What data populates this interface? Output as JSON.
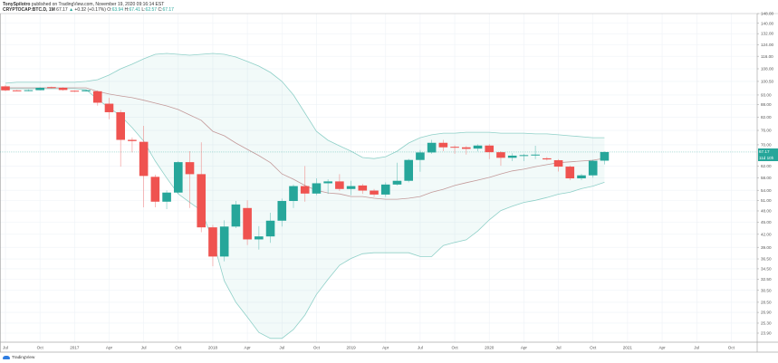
{
  "header": {
    "author": "TonySpilotro",
    "published": "published on TradingView.com, November 19, 2020 09:16:14 EST",
    "symbol": "CRYPTOCAP:BTC.D, 1M",
    "last": "67.17",
    "change": "+0.32 (+0.17%)",
    "o_label": "O:",
    "o": "63.94",
    "h_label": "H:",
    "h": "67.41",
    "l_label": "L:",
    "l": "62.57",
    "c_label": "C:",
    "c": "67.17"
  },
  "price_label": "67.17",
  "countdown_label": "11d 10h",
  "logo_text": "TradingView",
  "colors": {
    "up": "#26a69a",
    "down": "#ef5350",
    "band": "#8fd0c8",
    "basis": "#c39a9a",
    "grid": "#eef2f7"
  },
  "chart_data": {
    "type": "candlestick",
    "title": "CRYPTOCAP:BTC.D, 1M",
    "scale": "log",
    "ylim": [
      22.5,
      150
    ],
    "first_month": "Jul 2016",
    "y_ticks": [
      "148.00",
      "140.00",
      "132.00",
      "124.00",
      "116.00",
      "108.00",
      "100.50",
      "93.00",
      "88.00",
      "82.00",
      "76.00",
      "70.00",
      "62.00",
      "58.00",
      "54.00",
      "51.00",
      "48.00",
      "45.00",
      "42.00",
      "39.00",
      "36.50",
      "34.50",
      "32.50",
      "30.50",
      "28.50",
      "26.90",
      "25.30",
      "23.90"
    ],
    "x_ticks": [
      {
        "m": 0,
        "label": "Jul"
      },
      {
        "m": 3,
        "label": "Oct"
      },
      {
        "m": 6,
        "label": "2017"
      },
      {
        "m": 9,
        "label": "Apr"
      },
      {
        "m": 12,
        "label": "Jul"
      },
      {
        "m": 15,
        "label": "Oct"
      },
      {
        "m": 18,
        "label": "2018"
      },
      {
        "m": 21,
        "label": "Apr"
      },
      {
        "m": 24,
        "label": "Jul"
      },
      {
        "m": 27,
        "label": "Oct"
      },
      {
        "m": 30,
        "label": "2019"
      },
      {
        "m": 33,
        "label": "Apr"
      },
      {
        "m": 36,
        "label": "Jul"
      },
      {
        "m": 39,
        "label": "Oct"
      },
      {
        "m": 42,
        "label": "2020"
      },
      {
        "m": 45,
        "label": "Apr"
      },
      {
        "m": 48,
        "label": "Jul"
      },
      {
        "m": 51,
        "label": "Oct"
      },
      {
        "m": 54,
        "label": "2021"
      },
      {
        "m": 57,
        "label": "Apr"
      },
      {
        "m": 60,
        "label": "Jul"
      },
      {
        "m": 63,
        "label": "Oct"
      }
    ],
    "ohlc": [
      [
        97.7,
        98.5,
        95,
        95.5
      ],
      [
        95.5,
        95.8,
        95,
        95.3
      ],
      [
        95.3,
        96,
        95,
        95.6
      ],
      [
        95.6,
        97.2,
        95.5,
        96.9
      ],
      [
        97.3,
        97.6,
        96.5,
        96.7
      ],
      [
        96.9,
        97.2,
        95.3,
        95.7
      ],
      [
        95.3,
        95.5,
        94.6,
        94.9
      ],
      [
        95,
        95.8,
        94.8,
        95.6
      ],
      [
        95,
        95.5,
        87.5,
        89
      ],
      [
        88.5,
        91.5,
        81,
        84.3
      ],
      [
        84.3,
        85.4,
        61.8,
        72
      ],
      [
        72,
        73,
        67,
        71.5
      ],
      [
        71.2,
        78,
        49,
        58.6
      ],
      [
        58.3,
        59,
        49,
        50.6
      ],
      [
        50.6,
        54,
        48.5,
        53.3
      ],
      [
        53.3,
        63.8,
        53,
        63.4
      ],
      [
        63.4,
        67.5,
        48.8,
        59.2
      ],
      [
        59.2,
        71,
        42.5,
        43.7
      ],
      [
        43.7,
        44.3,
        35,
        37
      ],
      [
        37,
        45.5,
        36,
        43.9
      ],
      [
        43.9,
        50.8,
        43.5,
        49.8
      ],
      [
        48.8,
        51,
        39.5,
        40.8
      ],
      [
        40.8,
        44,
        38.5,
        41.5
      ],
      [
        41.5,
        47.5,
        40,
        45.4
      ],
      [
        45.4,
        51.5,
        43.9,
        50.8
      ],
      [
        50.8,
        55.8,
        48.8,
        55.3
      ],
      [
        55.3,
        62,
        50.6,
        53
      ],
      [
        53,
        57.8,
        52.5,
        56.2
      ],
      [
        56.2,
        57.5,
        52.9,
        56.8
      ],
      [
        56.8,
        59.2,
        53.8,
        54.4
      ],
      [
        54.4,
        57,
        52.5,
        55.3
      ],
      [
        55.5,
        56,
        52.9,
        53.9
      ],
      [
        53.9,
        54.4,
        52,
        52.7
      ],
      [
        52.7,
        56.5,
        52,
        55.8
      ],
      [
        55.8,
        63.2,
        55.5,
        57
      ],
      [
        57,
        64.6,
        56.5,
        64.2
      ],
      [
        64.2,
        68,
        60,
        67
      ],
      [
        67,
        72,
        66.5,
        70.8
      ],
      [
        70.8,
        72,
        67.5,
        69
      ],
      [
        69.2,
        69.8,
        66.5,
        69
      ],
      [
        69,
        69.5,
        66.2,
        68.4
      ],
      [
        68.5,
        70.2,
        67.4,
        69.7
      ],
      [
        69.7,
        70.3,
        64.5,
        67.1
      ],
      [
        67.1,
        67.5,
        62.1,
        65
      ],
      [
        65,
        66.7,
        63.8,
        65.8
      ],
      [
        65.8,
        66.5,
        63.8,
        66
      ],
      [
        66,
        69.6,
        64.5,
        66.2
      ],
      [
        64.8,
        65.3,
        64,
        64.4
      ],
      [
        64.1,
        64.5,
        60.1,
        61.8
      ],
      [
        61.8,
        62.2,
        57.2,
        57.8
      ],
      [
        57.8,
        59.3,
        57.2,
        58.8
      ],
      [
        58.8,
        64.3,
        58,
        63.9
      ],
      [
        63.94,
        67.41,
        62.57,
        67.17
      ]
    ],
    "bollinger": {
      "upper": [
        99.5,
        100,
        100,
        100,
        100,
        100,
        100,
        100.5,
        101.5,
        104.2,
        108,
        110.9,
        114.3,
        117.3,
        117.9,
        117.3,
        116.7,
        117.3,
        117.9,
        117.3,
        115.5,
        112.6,
        109.7,
        105.8,
        100.5,
        93,
        83.9,
        75.6,
        71.8,
        69.6,
        67.5,
        65.1,
        64.7,
        65.4,
        67.5,
        70.7,
        72.9,
        74.1,
        74.8,
        74.8,
        75.2,
        75.2,
        75.2,
        74.8,
        74.8,
        74.8,
        74.5,
        74.5,
        74.1,
        73.7,
        73.3,
        72.9,
        72.9
      ],
      "basis": [
        96.9,
        96.9,
        96.9,
        96.9,
        96.9,
        96.9,
        96.9,
        96.9,
        94.9,
        93.5,
        92.5,
        91.6,
        90.3,
        88.8,
        87.4,
        85.6,
        83.0,
        80.5,
        75.6,
        73.7,
        70.7,
        68.2,
        65.8,
        63.2,
        59.3,
        57.5,
        55.5,
        54.0,
        53.2,
        52.9,
        52.1,
        52.1,
        51.6,
        51.3,
        51.3,
        51.6,
        52.1,
        53.4,
        54.3,
        55.5,
        56.4,
        57.2,
        58.1,
        59.3,
        60.3,
        60.9,
        61.8,
        62.5,
        63.2,
        63.5,
        63.8,
        64.1,
        64.8
      ],
      "lower": [
        96.4,
        96.4,
        96.4,
        96.4,
        96.4,
        96.4,
        96.4,
        95.9,
        90.7,
        86.5,
        82.6,
        77.2,
        71.5,
        63.8,
        57.9,
        52.9,
        50.4,
        48.1,
        40.7,
        32.2,
        28.5,
        26.2,
        24.0,
        23.2,
        23.2,
        24.4,
        26.5,
        29.8,
        32.5,
        35.2,
        36.6,
        37.6,
        37.8,
        37.8,
        37.8,
        37.8,
        37.0,
        37.0,
        39.4,
        40.1,
        40.7,
        42.8,
        45.6,
        48.1,
        49.3,
        50.4,
        51.0,
        51.8,
        52.8,
        53.4,
        54.5,
        55.3,
        56.5
      ]
    },
    "last_price": 67.17
  }
}
